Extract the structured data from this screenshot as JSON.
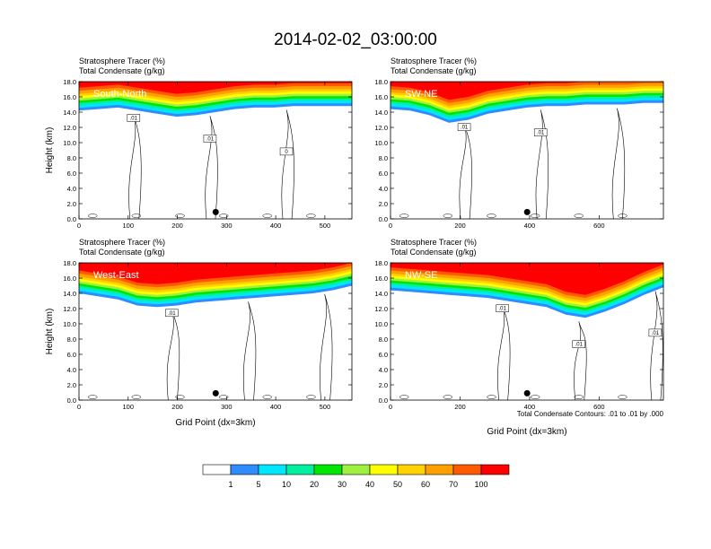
{
  "title": "2014-02-02_03:00:00",
  "footnote": "Total Condensate Contours: .01 to .01 by .000",
  "colorbar": {
    "colors": [
      "#ffffff",
      "#2e8cff",
      "#00e6ff",
      "#00f0a0",
      "#00e600",
      "#a0f040",
      "#ffff00",
      "#ffd200",
      "#ffa000",
      "#ff5a00",
      "#ff0000"
    ],
    "labels": [
      "1",
      "5",
      "10",
      "20",
      "30",
      "40",
      "50",
      "60",
      "70",
      "100"
    ]
  },
  "chart_data": [
    {
      "type": "heatmap",
      "id": "south-north",
      "label": "South-North",
      "title_line1": "Stratosphere Tracer   (%)",
      "title_line2": "Total Condensate   (g/kg)",
      "ylabel": "Height (km)",
      "xlabel": "",
      "xlim": [
        0,
        555
      ],
      "ylim": [
        0,
        18
      ],
      "xticks": [
        0,
        100,
        200,
        300,
        400,
        500
      ],
      "yticks": [
        "0.0",
        "2.0",
        "4.0",
        "6.0",
        "8.0",
        "10.0",
        "12.0",
        "14.0",
        "16.0",
        "18.0"
      ],
      "contour_labels": [
        ".01",
        ".01",
        "0"
      ],
      "tracer_base_km": [
        14.2,
        14.4,
        14.6,
        14.2,
        13.8,
        13.4,
        13.6,
        14.0,
        14.4,
        14.6,
        14.6,
        14.8,
        14.8,
        14.8,
        14.8
      ]
    },
    {
      "type": "heatmap",
      "id": "sw-ne",
      "label": "SW-NE",
      "title_line1": "Stratosphere Tracer   (%)",
      "title_line2": "Total Condensate   (g/kg)",
      "ylabel": "",
      "xlabel": "",
      "xlim": [
        0,
        785
      ],
      "ylim": [
        0,
        18
      ],
      "xticks": [
        0,
        200,
        400,
        600
      ],
      "yticks": [
        "0.0",
        "2.0",
        "4.0",
        "6.0",
        "8.0",
        "10.0",
        "12.0",
        "14.0",
        "16.0",
        "18.0"
      ],
      "contour_labels": [
        ".01",
        ".01"
      ],
      "tracer_base_km": [
        14.4,
        14.2,
        13.6,
        12.6,
        13.0,
        13.8,
        14.2,
        14.6,
        14.8,
        14.8,
        15.0,
        15.0,
        15.0,
        15.2,
        15.2
      ]
    },
    {
      "type": "heatmap",
      "id": "west-east",
      "label": "West-East",
      "title_line1": "Stratosphere Tracer   (%)",
      "title_line2": "Total Condensate   (g/kg)",
      "ylabel": "Height (km)",
      "xlabel": "Grid Point (dx=3km)",
      "xlim": [
        0,
        555
      ],
      "ylim": [
        0,
        18
      ],
      "xticks": [
        0,
        100,
        200,
        300,
        400,
        500
      ],
      "yticks": [
        "0.0",
        "2.0",
        "4.0",
        "6.0",
        "8.0",
        "10.0",
        "12.0",
        "14.0",
        "16.0",
        "18.0"
      ],
      "contour_labels": [
        ".01"
      ],
      "tracer_base_km": [
        14.0,
        13.6,
        13.2,
        12.4,
        12.2,
        12.4,
        12.8,
        13.0,
        13.2,
        13.4,
        13.6,
        13.8,
        14.0,
        14.4,
        15.0
      ]
    },
    {
      "type": "heatmap",
      "id": "nw-se",
      "label": "NW-SE",
      "title_line1": "Stratosphere Tracer   (%)",
      "title_line2": "Total Condensate   (g/kg)",
      "ylabel": "",
      "xlabel": "Grid Point (dx=3km)",
      "xlim": [
        0,
        785
      ],
      "ylim": [
        0,
        18
      ],
      "xticks": [
        0,
        200,
        400,
        600
      ],
      "yticks": [
        "0.0",
        "2.0",
        "4.0",
        "6.0",
        "8.0",
        "10.0",
        "12.0",
        "14.0",
        "16.0",
        "18.0"
      ],
      "contour_labels": [
        ".01",
        ".01",
        ".01",
        ".01"
      ],
      "tracer_base_km": [
        14.4,
        14.2,
        14.0,
        13.8,
        13.6,
        13.4,
        13.0,
        12.6,
        12.2,
        11.2,
        10.8,
        11.6,
        12.6,
        13.8,
        14.8
      ]
    }
  ]
}
